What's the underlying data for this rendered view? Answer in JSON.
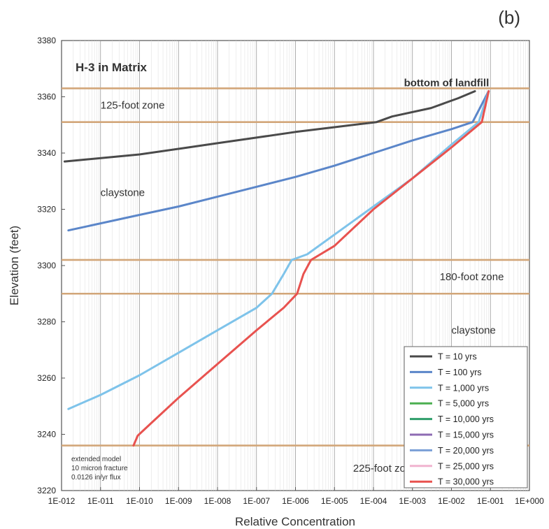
{
  "chart_data": {
    "type": "line",
    "panel_label": "(b)",
    "title": "H-3 in Matrix",
    "xlabel": "Relative Concentration",
    "ylabel": "Elevation (feet)",
    "x_scale": "log",
    "xlim": [
      1e-12,
      1
    ],
    "ylim": [
      3220,
      3380
    ],
    "x_ticks": [
      "1E-012",
      "1E-011",
      "1E-010",
      "1E-009",
      "1E-008",
      "1E-007",
      "1E-006",
      "1E-005",
      "1E-004",
      "1E-003",
      "1E-002",
      "1E-001",
      "1E+000"
    ],
    "y_ticks": [
      3220,
      3240,
      3260,
      3280,
      3300,
      3320,
      3340,
      3360,
      3380
    ],
    "grid": "vertical",
    "legend_position": "bottom-right",
    "horizontal_lines": [
      3363,
      3351,
      3302,
      3290,
      3236
    ],
    "horizontal_line_color": "#d2a679",
    "annotations": [
      {
        "text": "bottom of landfill",
        "x": 0.04,
        "y": 3365
      },
      {
        "text": "125-foot zone",
        "x": 1e-11,
        "y": 3357
      },
      {
        "text": "claystone",
        "x": 1e-11,
        "y": 3326
      },
      {
        "text": "180-foot zone",
        "x": 0.005,
        "y": 3296
      },
      {
        "text": "claystone",
        "x": 0.01,
        "y": 3277
      },
      {
        "text": "225-foot zone",
        "x": 3e-05,
        "y": 3228
      }
    ],
    "model_note": [
      "extended model",
      "10 micron fracture",
      "0.0126 in/yr flux"
    ],
    "series": [
      {
        "name": "T = 10 yrs",
        "color": "#4a4a4a",
        "points": [
          [
            1.2e-12,
            3337
          ],
          [
            1e-10,
            3339.5
          ],
          [
            1e-09,
            3341.5
          ],
          [
            1e-08,
            3343.5
          ],
          [
            1e-07,
            3345.5
          ],
          [
            1e-06,
            3347.5
          ],
          [
            1e-05,
            3349.2
          ],
          [
            0.00012,
            3351
          ],
          [
            0.0003,
            3353
          ],
          [
            0.003,
            3356
          ],
          [
            0.015,
            3359.5
          ],
          [
            0.04,
            3362
          ]
        ]
      },
      {
        "name": "T = 100 yrs",
        "color": "#5b86c9",
        "points": [
          [
            1.5e-12,
            3312.5
          ],
          [
            1e-10,
            3318
          ],
          [
            1e-09,
            3321
          ],
          [
            1e-08,
            3324.5
          ],
          [
            1e-07,
            3328
          ],
          [
            1e-06,
            3331.5
          ],
          [
            1e-05,
            3335.5
          ],
          [
            0.0001,
            3340
          ],
          [
            0.001,
            3344.5
          ],
          [
            0.01,
            3348.5
          ],
          [
            0.035,
            3351
          ],
          [
            0.09,
            3362
          ]
        ]
      },
      {
        "name": "T = 1,000 yrs",
        "color": "#7ec3ea",
        "points": [
          [
            1.5e-12,
            3249
          ],
          [
            1e-11,
            3254
          ],
          [
            1e-10,
            3261
          ],
          [
            1e-09,
            3269
          ],
          [
            1e-08,
            3277
          ],
          [
            1e-07,
            3285
          ],
          [
            2.5e-07,
            3290
          ],
          [
            5e-07,
            3297
          ],
          [
            8e-07,
            3302
          ],
          [
            2e-06,
            3304
          ],
          [
            1e-05,
            3311
          ],
          [
            0.0001,
            3321
          ],
          [
            0.001,
            3331
          ],
          [
            0.01,
            3343
          ],
          [
            0.05,
            3351
          ],
          [
            0.09,
            3362
          ]
        ]
      },
      {
        "name": "T = 5,000 yrs",
        "color": "#4caf50",
        "points": []
      },
      {
        "name": "T = 10,000 yrs",
        "color": "#2e9e6a",
        "points": []
      },
      {
        "name": "T = 15,000 yrs",
        "color": "#8e6bb3",
        "points": []
      },
      {
        "name": "T = 20,000 yrs",
        "color": "#7a9fd6",
        "points": []
      },
      {
        "name": "T = 25,000 yrs",
        "color": "#f0b3cf",
        "points": []
      },
      {
        "name": "T = 30,000 yrs",
        "color": "#e8524f",
        "points": [
          [
            7e-11,
            3236
          ],
          [
            9e-11,
            3239.5
          ],
          [
            2e-10,
            3244
          ],
          [
            1e-09,
            3253
          ],
          [
            1e-08,
            3265
          ],
          [
            1e-07,
            3277
          ],
          [
            5e-07,
            3285
          ],
          [
            1.1e-06,
            3290
          ],
          [
            1.6e-06,
            3297
          ],
          [
            2.5e-06,
            3302
          ],
          [
            1e-05,
            3307
          ],
          [
            0.0001,
            3320
          ],
          [
            0.001,
            3331
          ],
          [
            0.01,
            3342
          ],
          [
            0.06,
            3351
          ],
          [
            0.09,
            3362
          ]
        ]
      }
    ]
  }
}
